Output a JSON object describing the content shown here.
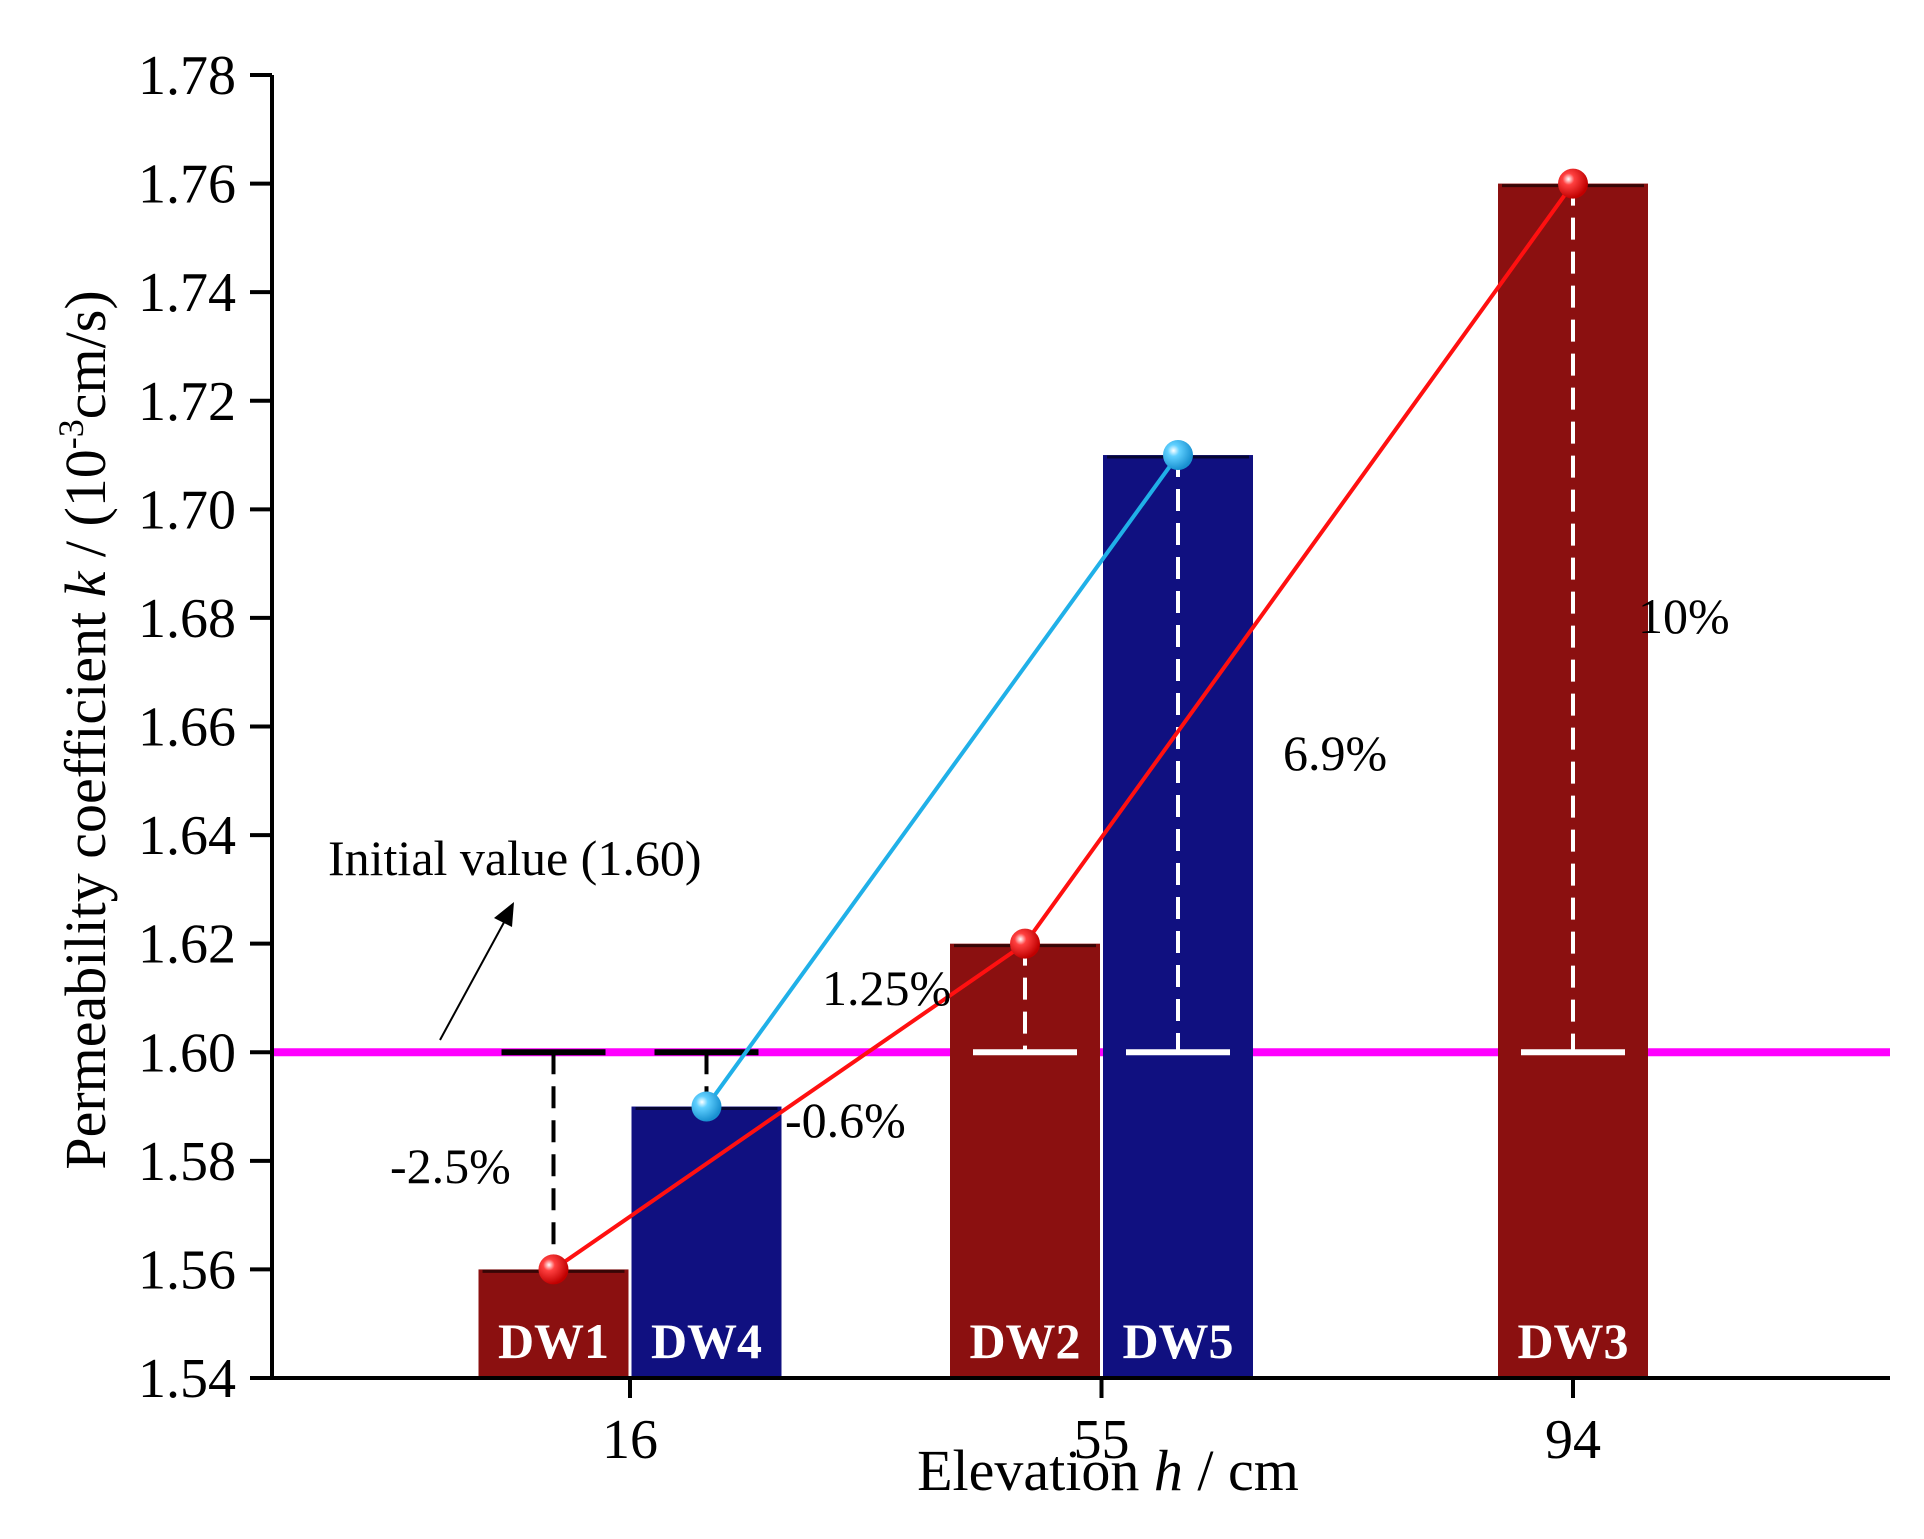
{
  "chart_data": {
    "type": "bar",
    "xlabel": {
      "prefix": "Elevation ",
      "var": "h",
      "suffix": " / cm"
    },
    "ylabel": {
      "prefix": "Permeability coefficient ",
      "var": "k",
      "mid": " / (10",
      "sup": "-3",
      "suffix": "cm/s)"
    },
    "x_ticks": [
      16,
      55,
      94
    ],
    "ylim": [
      1.54,
      1.78
    ],
    "y_ticks": [
      1.54,
      1.56,
      1.58,
      1.6,
      1.62,
      1.64,
      1.66,
      1.68,
      1.7,
      1.72,
      1.74,
      1.76,
      1.78
    ],
    "initial_value": 1.6,
    "initial_label": "Initial value (1.60)",
    "bars": [
      {
        "label": "DW1",
        "elevation": 16,
        "offset": -1,
        "value": 1.56,
        "color": "#8b1010",
        "change": "-2.5%"
      },
      {
        "label": "DW4",
        "elevation": 16,
        "offset": 1,
        "value": 1.59,
        "color": "#101080",
        "change": "-0.6%"
      },
      {
        "label": "DW2",
        "elevation": 55,
        "offset": -1,
        "value": 1.62,
        "color": "#8b1010",
        "change": "1.25%"
      },
      {
        "label": "DW5",
        "elevation": 55,
        "offset": 1,
        "value": 1.71,
        "color": "#101080",
        "change": "6.9%"
      },
      {
        "label": "DW3",
        "elevation": 94,
        "offset": 0,
        "value": 1.76,
        "color": "#8b1010",
        "change": "10%"
      }
    ],
    "series_lines": [
      {
        "bars": [
          "DW1",
          "DW2",
          "DW3"
        ],
        "color": "#ff1010"
      },
      {
        "bars": [
          "DW4",
          "DW5"
        ],
        "color": "#20b0e8"
      }
    ],
    "reference_line_color": "#ff00ff"
  }
}
